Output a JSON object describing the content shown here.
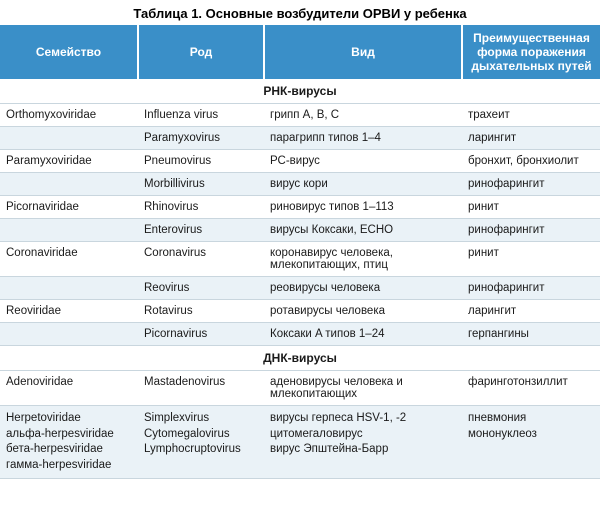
{
  "title": "Таблица 1. Основные возбудители ОРВИ у ребенка",
  "columns": [
    "Семейство",
    "Род",
    "Вид",
    "Преимущественная форма поражения дыхательных путей"
  ],
  "sections": [
    {
      "header": "РНК-вирусы",
      "rows": [
        {
          "alt": false,
          "c1": "Orthomyxoviridae",
          "c2": "Influenza virus",
          "c3": "грипп A, B, C",
          "c4": "трахеит"
        },
        {
          "alt": true,
          "c1": "",
          "c2": "Paramyxovirus",
          "c3": "парагрипп типов 1–4",
          "c4": "ларингит"
        },
        {
          "alt": false,
          "c1": "Paramyxoviridae",
          "c2": "Pneumovirus",
          "c3": "РС-вирус",
          "c4": "бронхит, бронхиолит"
        },
        {
          "alt": true,
          "c1": "",
          "c2": "Morbillivirus",
          "c3": "вирус кори",
          "c4": "ринофарингит"
        },
        {
          "alt": false,
          "c1": "Picornaviridae",
          "c2": "Rhinovirus",
          "c3": "риновирус типов 1–113",
          "c4": "ринит"
        },
        {
          "alt": true,
          "c1": "",
          "c2": "Enterovirus",
          "c3": "вирусы Коксаки, ECHO",
          "c4": "ринофарингит"
        },
        {
          "alt": false,
          "c1": "Coronaviridae",
          "c2": "Coronavirus",
          "c3": "коронавирус человека, млекопитающих, птиц",
          "c4": "ринит"
        },
        {
          "alt": true,
          "c1": "",
          "c2": "Reovirus",
          "c3": "реовирусы человека",
          "c4": "ринофарингит"
        },
        {
          "alt": false,
          "c1": "Reoviridae",
          "c2": "Rotavirus",
          "c3": "ротавирусы человека",
          "c4": "ларингит"
        },
        {
          "alt": true,
          "c1": "",
          "c2": "Picornavirus",
          "c3": "Коксаки A типов 1–24",
          "c4": "герпангины"
        }
      ]
    },
    {
      "header": "ДНК-вирусы",
      "rows": [
        {
          "alt": false,
          "c1": "Adenoviridae",
          "c2": "Mastadenovirus",
          "c3": "аденовирусы человека и млекопитающих",
          "c4": "фаринготонзиллит"
        },
        {
          "alt": true,
          "c1": "Herpetoviridae\nальфа-herpesviridae\nбета-herpesviridae\nгамма-herpesviridae",
          "c2": "Simplexvirus\nCytomegalovirus\nLymphocruptovirus",
          "c3": "вирусы герпеса HSV-1, -2\nцитомегаловирус\nвирус Эпштейна-Барр",
          "c4": "пневмония\nмононуклеоз"
        }
      ]
    }
  ],
  "colors": {
    "header_bg": "#3a8fc8",
    "header_text": "#ffffff",
    "row_alt_bg": "#eaf2f7",
    "row_bg": "#ffffff",
    "border": "#c9d6de"
  }
}
